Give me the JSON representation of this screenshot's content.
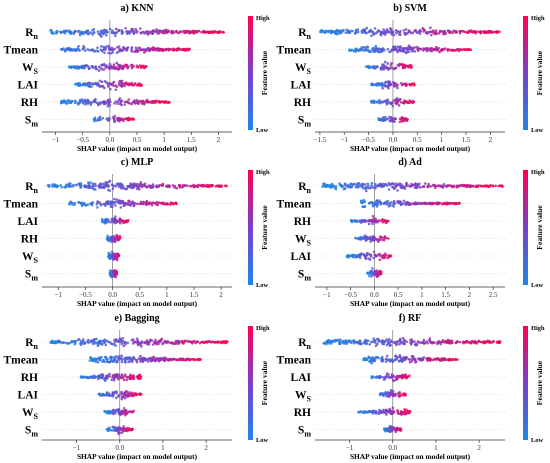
{
  "figure": {
    "colorbar": {
      "high_label": "High",
      "low_label": "Low",
      "label": "Feature value",
      "low_color": "#1e88e5",
      "high_color": "#ff0052"
    },
    "xlabel": "SHAP value (impact on model output)"
  },
  "chart_data": [
    {
      "type": "scatter",
      "title": "a) KNN",
      "xlabel": "SHAP value (impact on model output)",
      "features": [
        "R_n",
        "Tmean",
        "W_S",
        "LAI",
        "RH",
        "S_m"
      ],
      "xlim": [
        -1.25,
        2.25
      ],
      "xticks": [
        -1.0,
        -0.5,
        0.0,
        0.5,
        1.0,
        1.5,
        2.0
      ],
      "shap_ranges": [
        [
          -1.1,
          2.1
        ],
        [
          -0.9,
          1.5
        ],
        [
          -0.75,
          0.7
        ],
        [
          -0.65,
          0.6
        ],
        [
          -0.9,
          1.1
        ],
        [
          -0.3,
          0.45
        ]
      ],
      "legend": "colorbar right"
    },
    {
      "type": "scatter",
      "title": "b) SVM",
      "xlabel": "SHAP value (impact on model output)",
      "features": [
        "R_n",
        "Tmean",
        "W_S",
        "LAI",
        "RH",
        "S_m"
      ],
      "xlim": [
        -1.6,
        2.3
      ],
      "xticks": [
        -1.5,
        -1.0,
        -0.5,
        0.0,
        0.5,
        1.0,
        1.5,
        2.0
      ],
      "shap_ranges": [
        [
          -1.5,
          2.2
        ],
        [
          -0.9,
          1.6
        ],
        [
          -0.55,
          0.4
        ],
        [
          -0.45,
          0.45
        ],
        [
          -0.45,
          0.45
        ],
        [
          -0.3,
          0.3
        ]
      ],
      "legend": "colorbar right"
    },
    {
      "type": "scatter",
      "title": "c) MLP",
      "xlabel": "SHAP value (impact on model output)",
      "features": [
        "R_n",
        "Tmean",
        "LAI",
        "RH",
        "W_S",
        "S_m"
      ],
      "xlim": [
        -1.3,
        2.2
      ],
      "xticks": [
        -1.0,
        -0.5,
        0.0,
        0.5,
        1.0,
        1.5,
        2.0
      ],
      "shap_ranges": [
        [
          -1.2,
          2.1
        ],
        [
          -0.8,
          1.2
        ],
        [
          -0.2,
          0.3
        ],
        [
          -0.1,
          0.15
        ],
        [
          -0.08,
          0.12
        ],
        [
          -0.05,
          0.08
        ]
      ],
      "legend": "colorbar right"
    },
    {
      "type": "scatter",
      "title": "d) Ad",
      "xlabel": "SHAP value (impact on model output)",
      "features": [
        "R_n",
        "Tmean",
        "RH",
        "W_S",
        "LAI",
        "S_m"
      ],
      "xlim": [
        -1.25,
        2.75
      ],
      "xticks": [
        -1.0,
        -0.5,
        0.0,
        0.5,
        1.0,
        1.5,
        2.0,
        2.5
      ],
      "shap_ranges": [
        [
          -1.1,
          2.7
        ],
        [
          -0.3,
          1.8
        ],
        [
          -0.5,
          0.3
        ],
        [
          -0.4,
          0.3
        ],
        [
          -0.6,
          0.4
        ],
        [
          -0.15,
          0.15
        ]
      ],
      "legend": "colorbar right"
    },
    {
      "type": "scatter",
      "title": "e) Bagging",
      "xlabel": "SHAP value (impact on model output)",
      "features": [
        "R_n",
        "Tmean",
        "RH",
        "LAI",
        "W_S",
        "S_m"
      ],
      "xlim": [
        -1.8,
        2.6
      ],
      "xticks": [
        -1,
        0,
        1,
        2
      ],
      "shap_ranges": [
        [
          -1.6,
          2.5
        ],
        [
          -0.7,
          1.9
        ],
        [
          -0.9,
          0.5
        ],
        [
          -0.5,
          0.5
        ],
        [
          -0.35,
          0.35
        ],
        [
          -0.3,
          0.3
        ]
      ],
      "legend": "colorbar right"
    },
    {
      "type": "scatter",
      "title": "f) RF",
      "xlabel": "SHAP value (impact on model output)",
      "features": [
        "R_n",
        "Tmean",
        "LAI",
        "W_S",
        "RH",
        "S_m"
      ],
      "xlim": [
        -1.8,
        2.6
      ],
      "xticks": [
        -1,
        0,
        1,
        2
      ],
      "shap_ranges": [
        [
          -1.6,
          2.5
        ],
        [
          -0.7,
          1.5
        ],
        [
          -0.5,
          0.4
        ],
        [
          -0.3,
          0.3
        ],
        [
          -0.8,
          0.4
        ],
        [
          -0.2,
          0.2
        ]
      ],
      "legend": "colorbar right"
    }
  ]
}
